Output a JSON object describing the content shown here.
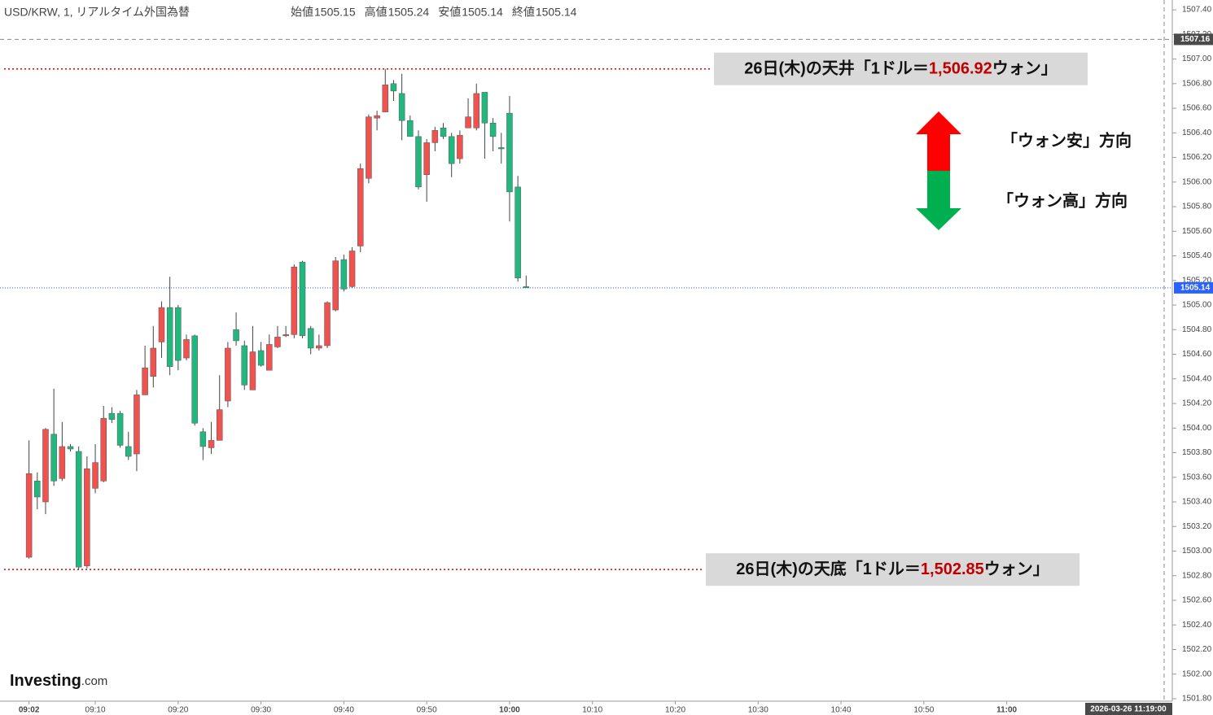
{
  "chart_data": {
    "type": "candlestick",
    "title": "USD/KRW, 1, リアルタイム外国為替",
    "ohlc_labels": [
      "始値",
      "高値",
      "安値",
      "終値"
    ],
    "ohlc_values": [
      1505.15,
      1505.24,
      1505.14,
      1505.14
    ],
    "up_color": "#ef5350",
    "down_color": "#22b77f",
    "x": [
      "09:02",
      "09:03",
      "09:04",
      "09:05",
      "09:06",
      "09:07",
      "09:08",
      "09:09",
      "09:10",
      "09:11",
      "09:12",
      "09:13",
      "09:14",
      "09:15",
      "09:16",
      "09:17",
      "09:18",
      "09:19",
      "09:20",
      "09:21",
      "09:22",
      "09:23",
      "09:24",
      "09:25",
      "09:26",
      "09:27",
      "09:28",
      "09:29",
      "09:30",
      "09:31",
      "09:32",
      "09:33",
      "09:34",
      "09:35",
      "09:36",
      "09:37",
      "09:38",
      "09:39",
      "09:40",
      "09:41",
      "09:42",
      "09:43",
      "09:44",
      "09:45",
      "09:46",
      "09:47",
      "09:48",
      "09:49",
      "09:50",
      "09:51",
      "09:52",
      "09:53",
      "09:54",
      "09:55",
      "09:56",
      "09:57",
      "09:58",
      "09:59",
      "10:00",
      "10:01",
      "10:02"
    ],
    "open": [
      1502.95,
      1503.57,
      1503.4,
      1503.95,
      1503.59,
      1503.85,
      1503.81,
      1502.88,
      1503.51,
      1503.57,
      1504.12,
      1504.12,
      1503.85,
      1503.79,
      1504.27,
      1504.42,
      1504.7,
      1504.98,
      1504.98,
      1504.57,
      1504.75,
      1503.97,
      1503.84,
      1503.9,
      1504.22,
      1504.8,
      1504.67,
      1504.31,
      1504.63,
      1504.47,
      1504.66,
      1504.75,
      1504.76,
      1505.35,
      1504.81,
      1504.65,
      1504.67,
      1504.96,
      1505.37,
      1505.15,
      1505.48,
      1506.03,
      1506.52,
      1506.57,
      1506.8,
      1506.72,
      1506.5,
      1506.37,
      1506.06,
      1506.32,
      1506.44,
      1506.37,
      1506.19,
      1506.44,
      1506.44,
      1506.73,
      1506.48,
      1506.28,
      1506.56,
      1505.96,
      1505.15
    ],
    "high": [
      1503.9,
      1503.64,
      1504.0,
      1504.32,
      1504.05,
      1503.87,
      1503.85,
      1503.77,
      1503.87,
      1504.18,
      1504.17,
      1504.14,
      1503.97,
      1504.31,
      1504.67,
      1504.83,
      1505.03,
      1505.23,
      1505.0,
      1504.76,
      1504.76,
      1504.0,
      1504.05,
      1504.43,
      1504.7,
      1504.94,
      1504.71,
      1504.83,
      1504.7,
      1504.76,
      1504.83,
      1504.83,
      1505.33,
      1505.36,
      1504.83,
      1504.76,
      1505.03,
      1505.39,
      1505.41,
      1505.47,
      1506.15,
      1506.55,
      1506.58,
      1506.92,
      1506.83,
      1506.88,
      1506.54,
      1506.42,
      1506.35,
      1506.45,
      1506.48,
      1506.4,
      1506.42,
      1506.68,
      1506.8,
      1506.73,
      1506.52,
      1506.4,
      1506.7,
      1506.05,
      1505.24
    ],
    "low": [
      1502.94,
      1503.34,
      1503.3,
      1503.53,
      1503.57,
      1503.81,
      1502.85,
      1502.86,
      1503.47,
      1503.56,
      1504.04,
      1503.84,
      1503.74,
      1503.65,
      1504.27,
      1504.33,
      1504.57,
      1504.43,
      1504.47,
      1504.55,
      1504.02,
      1503.74,
      1503.79,
      1503.9,
      1504.17,
      1504.67,
      1504.31,
      1504.31,
      1504.5,
      1504.47,
      1504.65,
      1504.74,
      1504.73,
      1504.73,
      1504.6,
      1504.63,
      1504.65,
      1504.95,
      1505.11,
      1505.14,
      1505.43,
      1505.99,
      1506.42,
      1506.57,
      1506.66,
      1506.34,
      1506.37,
      1505.94,
      1505.84,
      1506.25,
      1506.35,
      1506.04,
      1506.15,
      1506.44,
      1506.42,
      1506.19,
      1506.25,
      1506.15,
      1505.68,
      1505.19,
      1505.14
    ],
    "close": [
      1503.63,
      1503.44,
      1503.99,
      1503.57,
      1503.85,
      1503.83,
      1502.87,
      1503.67,
      1503.72,
      1504.08,
      1504.07,
      1503.86,
      1503.77,
      1504.27,
      1504.49,
      1504.65,
      1504.98,
      1504.5,
      1504.55,
      1504.72,
      1504.04,
      1503.85,
      1503.9,
      1504.15,
      1504.65,
      1504.71,
      1504.35,
      1504.62,
      1504.51,
      1504.68,
      1504.74,
      1504.76,
      1505.31,
      1504.75,
      1504.65,
      1504.67,
      1505.02,
      1505.36,
      1505.13,
      1505.44,
      1506.11,
      1506.53,
      1506.54,
      1506.79,
      1506.74,
      1506.5,
      1506.37,
      1505.96,
      1506.32,
      1506.42,
      1506.37,
      1506.15,
      1506.38,
      1506.53,
      1506.72,
      1506.48,
      1506.37,
      1506.27,
      1505.92,
      1505.22,
      1505.14
    ],
    "xlim": [
      "08:58:30",
      "11:19:00"
    ],
    "xticks": [
      "09:02",
      "09:10",
      "09:20",
      "09:30",
      "09:40",
      "09:50",
      "10:00",
      "10:10",
      "10:20",
      "10:30",
      "10:40",
      "10:50",
      "11:00"
    ],
    "ylim": [
      1501.78,
      1507.48
    ],
    "yticks": [
      {
        "value": 1501.8,
        "label": "1501.80"
      },
      {
        "value": 1502,
        "label": "1502.00"
      },
      {
        "value": 1502.2,
        "label": "1502.20"
      },
      {
        "value": 1502.4,
        "label": "1502.40"
      },
      {
        "value": 1502.6,
        "label": "1502.60"
      },
      {
        "value": 1502.8,
        "label": "1502.80"
      },
      {
        "value": 1503,
        "label": "1503.00"
      },
      {
        "value": 1503.2,
        "label": "1503.20"
      },
      {
        "value": 1503.4,
        "label": "1503.40"
      },
      {
        "value": 1503.6,
        "label": "1503.60"
      },
      {
        "value": 1503.8,
        "label": "1503.80"
      },
      {
        "value": 1504,
        "label": "1504.00"
      },
      {
        "value": 1504.2,
        "label": "1504.20"
      },
      {
        "value": 1504.4,
        "label": "1504.40"
      },
      {
        "value": 1504.6,
        "label": "1504.60"
      },
      {
        "value": 1504.8,
        "label": "1504.80"
      },
      {
        "value": 1505,
        "label": "1505.00"
      },
      {
        "value": 1505.2,
        "label": "1505.20"
      },
      {
        "value": 1505.4,
        "label": "1505.40"
      },
      {
        "value": 1505.6,
        "label": "1505.60"
      },
      {
        "value": 1505.8,
        "label": "1505.80"
      },
      {
        "value": 1506,
        "label": "1506.00"
      },
      {
        "value": 1506.2,
        "label": "1506.20"
      },
      {
        "value": 1506.4,
        "label": "1506.40"
      },
      {
        "value": 1506.6,
        "label": "1506.60"
      },
      {
        "value": 1506.8,
        "label": "1506.80"
      },
      {
        "value": 1507,
        "label": "1507.00"
      },
      {
        "value": 1507.2,
        "label": "1507.20"
      },
      {
        "value": 1507.4,
        "label": "1507.40"
      }
    ],
    "last_price": 1505.14,
    "crosshair_price": 1507.16,
    "crosshair_time": "2026-03-26 11:19:00",
    "annotations": [
      {
        "prefix": "26日(木)の天井「1ドル＝",
        "value": 1506.92,
        "label": "1,506.92",
        "suffix": "ウォン」"
      },
      {
        "prefix": "26日(木)の天底「1ドル＝",
        "value": 1502.85,
        "label": "1,502.85",
        "suffix": "ウォン」"
      }
    ],
    "direction_labels": [
      "「ウォン安」方向",
      "「ウォン高」方向"
    ],
    "logo": [
      "Investing",
      ".com"
    ]
  }
}
